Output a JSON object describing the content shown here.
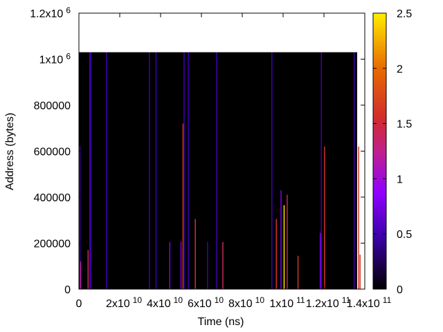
{
  "chart_data": {
    "type": "heatmap",
    "xlabel": "Time (ns)",
    "ylabel": "Address (bytes)",
    "xlim": [
      0,
      140000000000
    ],
    "ylim": [
      0,
      1200000
    ],
    "grid": false,
    "data_region": {
      "x": [
        0,
        140000000000
      ],
      "y": [
        0,
        1030000
      ]
    },
    "background_value": 0,
    "x_ticks": [
      {
        "value": 0,
        "label": "0",
        "exp": ""
      },
      {
        "value": 20000000000,
        "label": "2x10",
        "exp": "10"
      },
      {
        "value": 40000000000,
        "label": "4x10",
        "exp": "10"
      },
      {
        "value": 60000000000,
        "label": "6x10",
        "exp": "10"
      },
      {
        "value": 80000000000,
        "label": "8x10",
        "exp": "10"
      },
      {
        "value": 100000000000,
        "label": "1x10",
        "exp": "11"
      },
      {
        "value": 120000000000,
        "label": "1.2x10",
        "exp": "11"
      },
      {
        "value": 140000000000,
        "label": "1.4x10",
        "exp": "11"
      }
    ],
    "y_ticks": [
      {
        "value": 0,
        "label": "0",
        "exp": ""
      },
      {
        "value": 200000,
        "label": "200000",
        "exp": ""
      },
      {
        "value": 400000,
        "label": "400000",
        "exp": ""
      },
      {
        "value": 600000,
        "label": "600000",
        "exp": ""
      },
      {
        "value": 800000,
        "label": "800000",
        "exp": ""
      },
      {
        "value": 1000000,
        "label": "1x10",
        "exp": "6"
      },
      {
        "value": 1200000,
        "label": "1.2x10",
        "exp": "6"
      }
    ],
    "colorbar": {
      "range": [
        0,
        2.5
      ],
      "ticks": [
        {
          "value": 0,
          "label": "0"
        },
        {
          "value": 0.5,
          "label": "0.5"
        },
        {
          "value": 1,
          "label": "1"
        },
        {
          "value": 1.5,
          "label": "1.5"
        },
        {
          "value": 2,
          "label": "2"
        },
        {
          "value": 2.5,
          "label": "2.5"
        }
      ]
    },
    "stripes": [
      {
        "x": 500000000,
        "y0": 0,
        "y1": 620000,
        "value": 0.5
      },
      {
        "x": 800000000,
        "y0": 0,
        "y1": 120000,
        "value": 1.2
      },
      {
        "x": 4500000000,
        "y0": 0,
        "y1": 170000,
        "value": 1.4
      },
      {
        "x": 5300000000,
        "y0": 0,
        "y1": 1030000,
        "value": 0.5
      },
      {
        "x": 5800000000,
        "y0": 0,
        "y1": 1030000,
        "value": 0.5
      },
      {
        "x": 13500000000,
        "y0": 0,
        "y1": 1030000,
        "value": 0.5
      },
      {
        "x": 34500000000,
        "y0": 0,
        "y1": 1030000,
        "value": 0.5
      },
      {
        "x": 37800000000,
        "y0": 0,
        "y1": 1030000,
        "value": 0.5
      },
      {
        "x": 44500000000,
        "y0": 0,
        "y1": 205000,
        "value": 0.8
      },
      {
        "x": 50000000000,
        "y0": 0,
        "y1": 205000,
        "value": 0.8
      },
      {
        "x": 51000000000,
        "y0": 0,
        "y1": 720000,
        "value": 1.6
      },
      {
        "x": 51500000000,
        "y0": 0,
        "y1": 1030000,
        "value": 0.5
      },
      {
        "x": 53600000000,
        "y0": 0,
        "y1": 1030000,
        "value": 0.5
      },
      {
        "x": 57000000000,
        "y0": 0,
        "y1": 305000,
        "value": 1.6
      },
      {
        "x": 63000000000,
        "y0": 0,
        "y1": 205000,
        "value": 0.5
      },
      {
        "x": 67500000000,
        "y0": 0,
        "y1": 1030000,
        "value": 0.5
      },
      {
        "x": 70500000000,
        "y0": 0,
        "y1": 205000,
        "value": 1.4
      },
      {
        "x": 94500000000,
        "y0": 0,
        "y1": 1030000,
        "value": 0.5
      },
      {
        "x": 96700000000,
        "y0": 0,
        "y1": 305000,
        "value": 1.6
      },
      {
        "x": 99000000000,
        "y0": 0,
        "y1": 430000,
        "value": 0.8
      },
      {
        "x": 100500000000,
        "y0": 0,
        "y1": 365000,
        "value": 2.5
      },
      {
        "x": 102000000000,
        "y0": 0,
        "y1": 410000,
        "value": 1.4
      },
      {
        "x": 107300000000,
        "y0": 0,
        "y1": 145000,
        "value": 1.6
      },
      {
        "x": 118200000000,
        "y0": 0,
        "y1": 245000,
        "value": 0.8
      },
      {
        "x": 118700000000,
        "y0": 0,
        "y1": 1030000,
        "value": 0.5
      },
      {
        "x": 120300000000,
        "y0": 0,
        "y1": 620000,
        "value": 1.6
      },
      {
        "x": 134800000000,
        "y0": 0,
        "y1": 1030000,
        "value": 0.5
      },
      {
        "x": 137000000000,
        "y0": 0,
        "y1": 620000,
        "value": 1.6
      },
      {
        "x": 137700000000,
        "y0": 0,
        "y1": 150000,
        "value": 1.6
      }
    ]
  }
}
